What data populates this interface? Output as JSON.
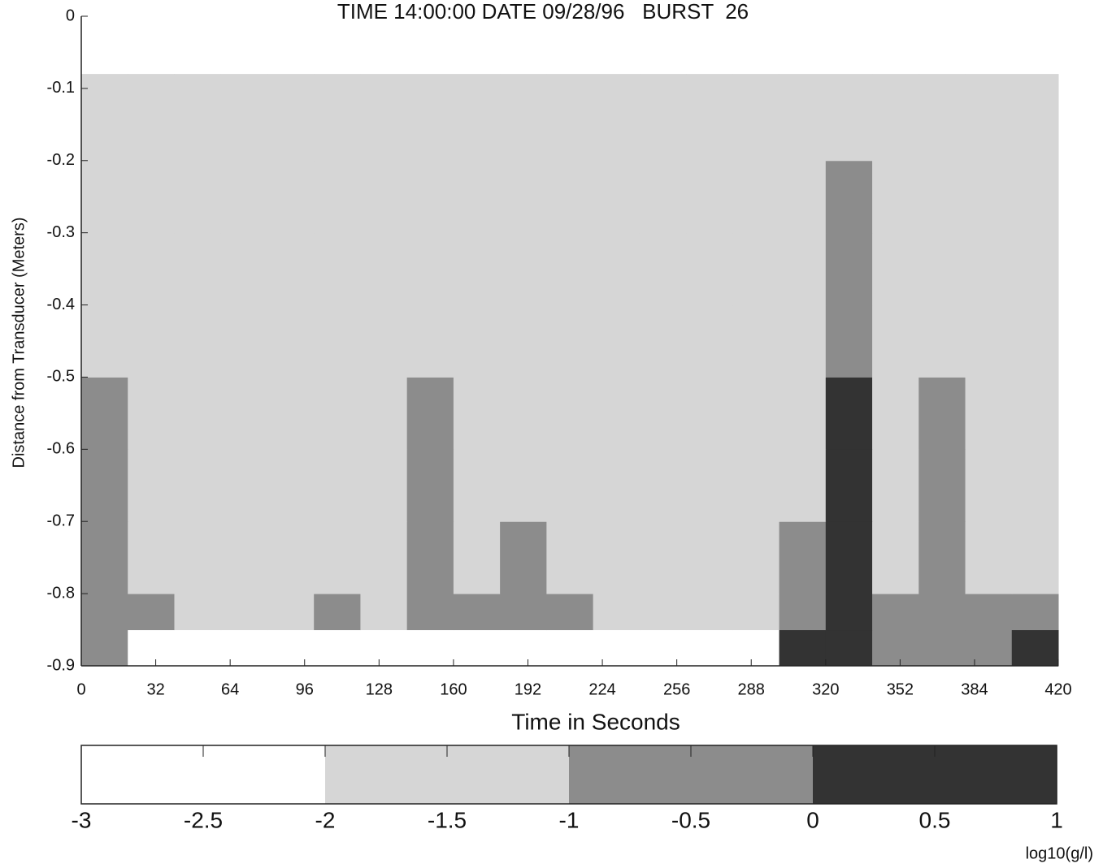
{
  "chart_data": {
    "type": "heatmap",
    "title": "TIME 14:00:00 DATE 09/28/96   BURST  26",
    "xlabel": "Time in Seconds",
    "ylabel": "Distance from Transducer (Meters)",
    "xlim": [
      0,
      420
    ],
    "xticks": [
      0,
      32,
      64,
      96,
      128,
      160,
      192,
      224,
      256,
      288,
      320,
      352,
      384,
      420
    ],
    "ylim": [
      -0.9,
      0
    ],
    "yticks": [
      0,
      -0.1,
      -0.2,
      -0.3,
      -0.4,
      -0.5,
      -0.6,
      -0.7,
      -0.8,
      -0.9
    ],
    "x_edges": [
      0,
      20,
      40,
      60,
      80,
      100,
      120,
      140,
      160,
      180,
      200,
      220,
      240,
      260,
      280,
      300,
      320,
      340,
      360,
      380,
      400,
      420
    ],
    "y_edges": [
      -0.9,
      -0.85,
      -0.8,
      -0.7,
      -0.6,
      -0.5,
      -0.4,
      -0.3,
      -0.2,
      -0.08
    ],
    "z": [
      [
        -0.5,
        -2.5,
        -2.5,
        -2.5,
        -2.5,
        -2.5,
        -2.5,
        -2.5,
        -2.5,
        -2.5,
        -2.5,
        -2.5,
        -2.5,
        -2.5,
        -2.5,
        0.2,
        0.3,
        -0.5,
        -0.5,
        -0.5,
        0.3
      ],
      [
        -0.5,
        -0.8,
        -1.5,
        -1.5,
        -1.3,
        -0.8,
        -1.5,
        -0.7,
        -0.7,
        -0.8,
        -0.7,
        -1.2,
        -1.5,
        -1.2,
        -1.5,
        -0.5,
        0.3,
        -0.8,
        -0.7,
        -0.8,
        -0.5
      ],
      [
        -0.8,
        -1.5,
        -1.5,
        -1.5,
        -1.5,
        -1.5,
        -1.5,
        -0.8,
        -1.5,
        -0.8,
        -1.5,
        -1.5,
        -1.5,
        -1.5,
        -1.5,
        -0.7,
        0.2,
        -1.5,
        -0.8,
        -1.5,
        -1.5
      ],
      [
        -0.8,
        -1.5,
        -1.5,
        -1.5,
        -1.5,
        -1.5,
        -1.5,
        -0.8,
        -1.5,
        -1.5,
        -1.5,
        -1.5,
        -1.5,
        -1.5,
        -1.5,
        -1.5,
        0.1,
        -1.5,
        -0.7,
        -1.5,
        -1.5
      ],
      [
        -0.8,
        -1.5,
        -1.5,
        -1.5,
        -1.5,
        -1.5,
        -1.5,
        -1.0,
        -1.5,
        -1.5,
        -1.5,
        -1.5,
        -1.5,
        -1.5,
        -1.5,
        -1.5,
        0.2,
        -1.5,
        -0.8,
        -1.5,
        -1.5
      ],
      [
        -1.5,
        -1.5,
        -1.5,
        -1.5,
        -1.5,
        -1.5,
        -1.5,
        -1.5,
        -1.5,
        -1.5,
        -1.5,
        -1.5,
        -1.5,
        -1.5,
        -1.5,
        -1.5,
        -0.5,
        -1.5,
        -1.5,
        -1.5,
        -1.5
      ],
      [
        -1.5,
        -1.5,
        -1.5,
        -1.5,
        -1.5,
        -1.5,
        -1.5,
        -1.5,
        -1.5,
        -1.5,
        -1.5,
        -1.5,
        -1.5,
        -1.5,
        -1.5,
        -1.5,
        -0.4,
        -1.5,
        -1.5,
        -1.5,
        -1.5
      ],
      [
        -1.5,
        -1.5,
        -1.5,
        -1.5,
        -1.5,
        -1.5,
        -1.5,
        -1.5,
        -1.5,
        -1.5,
        -1.5,
        -1.5,
        -1.5,
        -1.5,
        -1.5,
        -1.5,
        -0.3,
        -1.5,
        -1.5,
        -1.5,
        -1.5
      ],
      [
        -1.5,
        -1.5,
        -1.5,
        -1.5,
        -1.5,
        -1.5,
        -1.5,
        -1.5,
        -1.5,
        -1.5,
        -1.5,
        -1.5,
        -1.5,
        -1.5,
        -1.5,
        -1.5,
        -1.5,
        -1.5,
        -1.5,
        -1.5,
        -1.5
      ]
    ],
    "colorbar": {
      "label": "log10(g/l)",
      "lim": [
        -3,
        1
      ],
      "ticks": [
        -3,
        -2.5,
        -2,
        -1.5,
        -1,
        -0.5,
        0,
        0.5,
        1
      ],
      "levels": [
        -3,
        -2,
        -1,
        0,
        1
      ],
      "colors": [
        "#ffffff",
        "#d6d6d6",
        "#8c8c8c",
        "#333333"
      ]
    }
  }
}
